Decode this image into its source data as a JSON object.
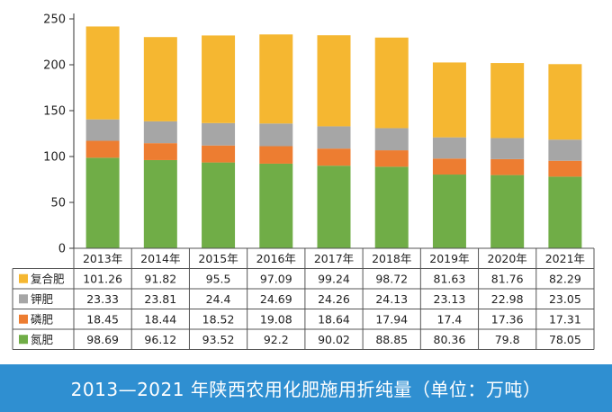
{
  "chart_data": {
    "type": "bar",
    "stacked": true,
    "categories": [
      "2013年",
      "2014年",
      "2015年",
      "2016年",
      "2017年",
      "2018年",
      "2019年",
      "2020年",
      "2021年"
    ],
    "series": [
      {
        "name": "复合肥",
        "color": "#f5b731",
        "values": [
          101.26,
          91.82,
          95.5,
          97.09,
          99.24,
          98.72,
          81.63,
          81.76,
          82.29
        ],
        "labels": [
          "101.26",
          "91.82",
          "95.5",
          "97.09",
          "99.24",
          "98.72",
          "81.63",
          "81.76",
          "82.29"
        ]
      },
      {
        "name": "钾肥",
        "color": "#a6a6a6",
        "values": [
          23.33,
          23.81,
          24.4,
          24.69,
          24.26,
          24.13,
          23.13,
          22.98,
          23.05
        ],
        "labels": [
          "23.33",
          "23.81",
          "24.4",
          "24.69",
          "24.26",
          "24.13",
          "23.13",
          "22.98",
          "23.05"
        ]
      },
      {
        "name": "磷肥",
        "color": "#ed7d31",
        "values": [
          18.45,
          18.44,
          18.52,
          19.08,
          18.64,
          17.94,
          17.4,
          17.36,
          17.31
        ],
        "labels": [
          "18.45",
          "18.44",
          "18.52",
          "19.08",
          "18.64",
          "17.94",
          "17.4",
          "17.36",
          "17.31"
        ]
      },
      {
        "name": "氮肥",
        "color": "#70ad47",
        "values": [
          98.69,
          96.12,
          93.52,
          92.2,
          90.02,
          88.85,
          80.36,
          79.8,
          78.05
        ],
        "labels": [
          "98.69",
          "96.12",
          "93.52",
          "92.2",
          "90.02",
          "88.85",
          "80.36",
          "79.8",
          "78.05"
        ]
      }
    ],
    "stack_order_bottom_to_top": [
      "氮肥",
      "磷肥",
      "钾肥",
      "复合肥"
    ],
    "y_ticks": [
      "0",
      "50",
      "100",
      "150",
      "200",
      "250"
    ],
    "ylim": [
      0,
      250
    ],
    "grid": false,
    "legend": "data-table",
    "title": "2013—2021 年陕西农用化肥施用折纯量（单位：万吨）",
    "xlabel": "",
    "ylabel": ""
  }
}
